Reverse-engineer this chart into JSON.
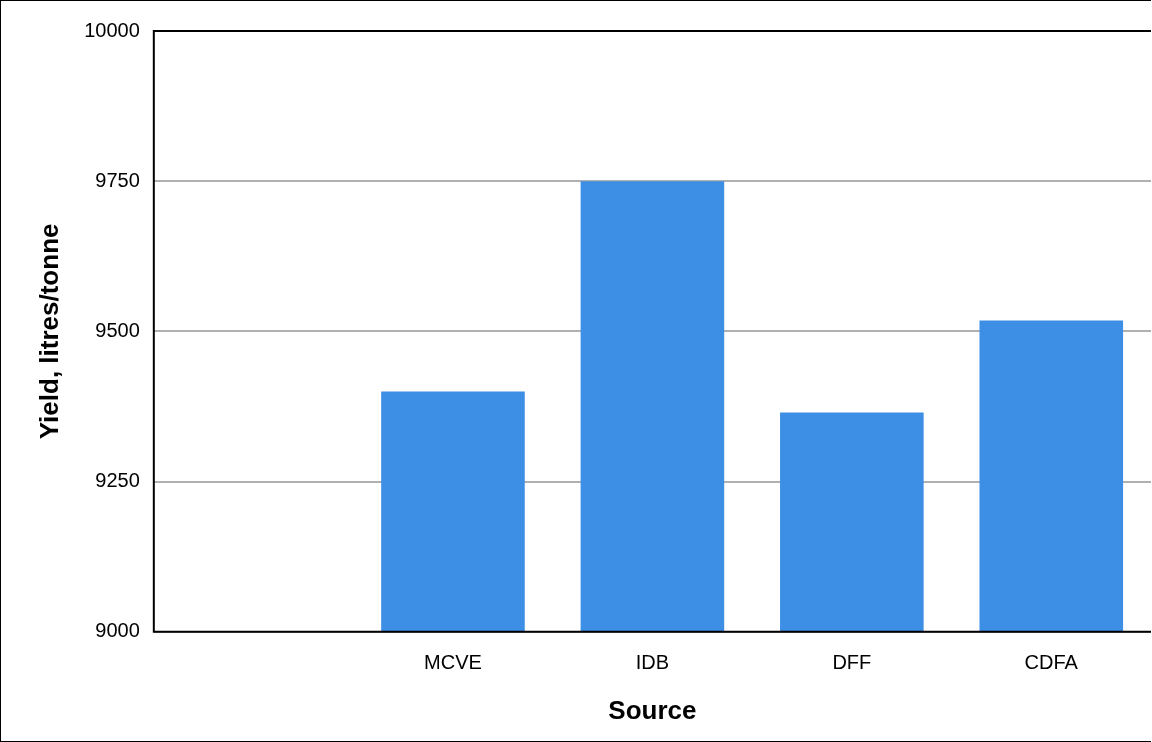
{
  "chart_data": {
    "type": "bar",
    "xlabel": "Source",
    "ylabel": "Yield, litres/tonne",
    "categories": [
      null,
      "MCVE",
      "IDB",
      "DFF",
      "CDFA"
    ],
    "values": [
      null,
      9400,
      9750,
      9365,
      9518
    ],
    "color": "#3d8fe6",
    "ylim": [
      9000,
      10000
    ],
    "yticks": [
      9000,
      9250,
      9500,
      9750,
      10000
    ],
    "grid": "y",
    "legend": false
  }
}
